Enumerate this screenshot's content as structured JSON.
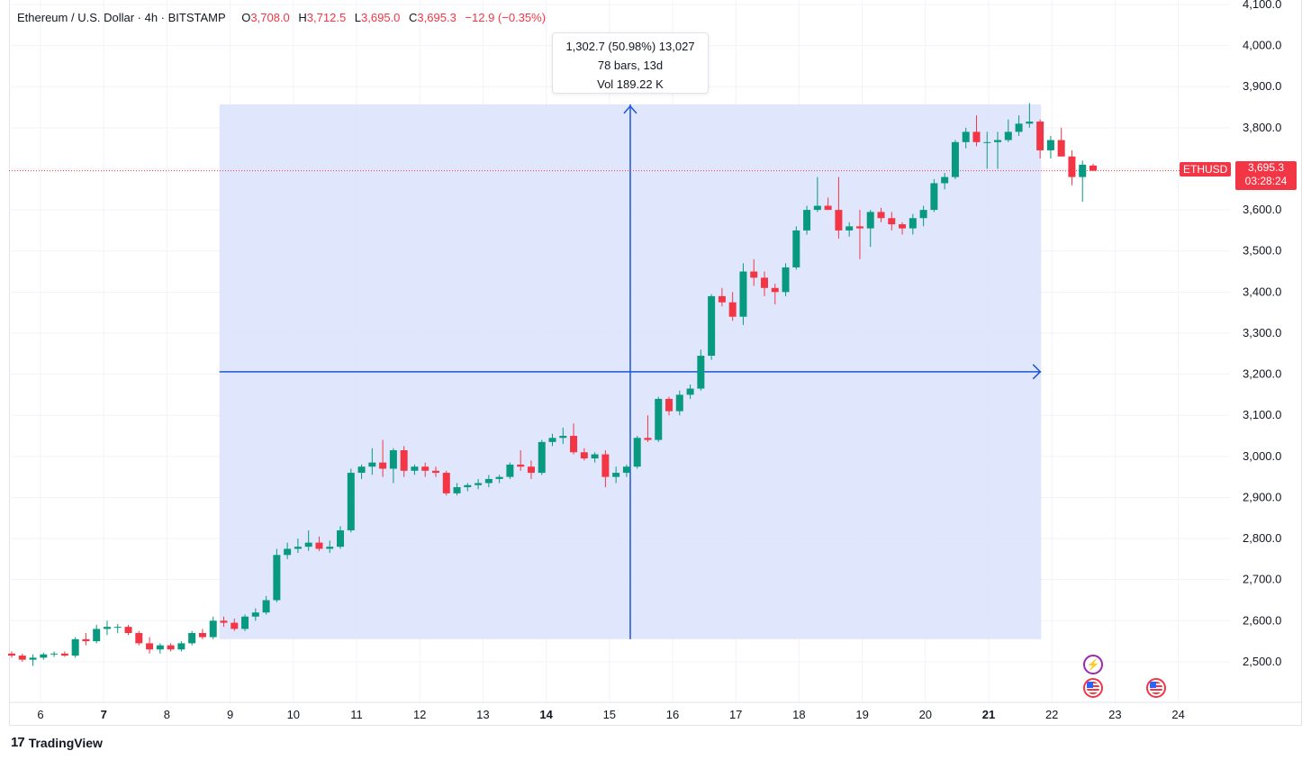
{
  "legend": {
    "symbol": "Ethereum / U.S. Dollar · 4h · BITSTAMP",
    "open_label": "O",
    "open": "3,708.0",
    "high_label": "H",
    "high": "3,712.5",
    "low_label": "L",
    "low": "3,695.0",
    "close_label": "C",
    "close": "3,695.3",
    "change": "−12.9 (−0.35%)"
  },
  "measure_tooltip": {
    "line1": "1,302.7 (50.98%) 13,027",
    "line2": "78 bars, 13d",
    "line3": "Vol 189.22 K"
  },
  "price_label": {
    "ticker": "ETHUSD",
    "price": "3,695.3",
    "countdown": "03:28:24"
  },
  "footer": {
    "logo": "17",
    "brand": "TradingView"
  },
  "events": [
    "lightning-event-icon",
    "us-flag-event-icon",
    "us-flag-event-icon"
  ],
  "colors": {
    "up": "#089981",
    "down": "#f23645",
    "measure_fill": "#dbe3fc",
    "measure_line": "#1e55d8"
  },
  "chart_data": {
    "type": "candlestick",
    "title": "Ethereum / U.S. Dollar · 4h · BITSTAMP",
    "y_ticks": [
      "2,500.0",
      "2,600.0",
      "2,700.0",
      "2,800.0",
      "2,900.0",
      "3,000.0",
      "3,100.0",
      "3,200.0",
      "3,300.0",
      "3,400.0",
      "3,500.0",
      "3,600.0",
      "3,700.0",
      "3,800.0",
      "3,900.0",
      "4,000.0",
      "4,100.0"
    ],
    "y_tick_values": [
      2500,
      2600,
      2700,
      2800,
      2900,
      3000,
      3100,
      3200,
      3300,
      3400,
      3500,
      3600,
      3700,
      3800,
      3900,
      4000,
      4100
    ],
    "ylim": [
      2440,
      4110
    ],
    "x_ticks": [
      {
        "label": "6",
        "day": 6,
        "bold": false
      },
      {
        "label": "7",
        "day": 7,
        "bold": true
      },
      {
        "label": "8",
        "day": 8,
        "bold": false
      },
      {
        "label": "9",
        "day": 9,
        "bold": false
      },
      {
        "label": "10",
        "day": 10,
        "bold": false
      },
      {
        "label": "11",
        "day": 11,
        "bold": false
      },
      {
        "label": "12",
        "day": 12,
        "bold": false
      },
      {
        "label": "13",
        "day": 13,
        "bold": false
      },
      {
        "label": "14",
        "day": 14,
        "bold": true
      },
      {
        "label": "15",
        "day": 15,
        "bold": false
      },
      {
        "label": "16",
        "day": 16,
        "bold": false
      },
      {
        "label": "17",
        "day": 17,
        "bold": false
      },
      {
        "label": "18",
        "day": 18,
        "bold": false
      },
      {
        "label": "19",
        "day": 19,
        "bold": false
      },
      {
        "label": "20",
        "day": 20,
        "bold": false
      },
      {
        "label": "21",
        "day": 21,
        "bold": true
      },
      {
        "label": "22",
        "day": 22,
        "bold": false
      },
      {
        "label": "23",
        "day": 23,
        "bold": false
      },
      {
        "label": "24",
        "day": 24,
        "bold": false
      }
    ],
    "grid": true,
    "last_price": 3695.3,
    "measure": {
      "start_day": 8.83,
      "end_day": 21.83,
      "low": 2555,
      "high": 3857,
      "change": "1,302.7 (50.98%)"
    },
    "ohlc": [
      [
        2520,
        2525,
        2510,
        2515
      ],
      [
        2515,
        2520,
        2500,
        2505
      ],
      [
        2505,
        2518,
        2490,
        2510
      ],
      [
        2510,
        2522,
        2505,
        2518
      ],
      [
        2518,
        2525,
        2512,
        2520
      ],
      [
        2520,
        2525,
        2512,
        2515
      ],
      [
        2515,
        2560,
        2510,
        2555
      ],
      [
        2555,
        2570,
        2540,
        2550
      ],
      [
        2550,
        2590,
        2545,
        2580
      ],
      [
        2580,
        2600,
        2565,
        2585
      ],
      [
        2585,
        2592,
        2570,
        2585
      ],
      [
        2585,
        2590,
        2565,
        2570
      ],
      [
        2570,
        2575,
        2540,
        2545
      ],
      [
        2545,
        2560,
        2520,
        2530
      ],
      [
        2530,
        2545,
        2520,
        2540
      ],
      [
        2540,
        2545,
        2525,
        2530
      ],
      [
        2530,
        2550,
        2525,
        2545
      ],
      [
        2545,
        2575,
        2540,
        2570
      ],
      [
        2570,
        2580,
        2555,
        2560
      ],
      [
        2560,
        2610,
        2555,
        2600
      ],
      [
        2600,
        2610,
        2585,
        2595
      ],
      [
        2595,
        2605,
        2575,
        2580
      ],
      [
        2580,
        2615,
        2575,
        2610
      ],
      [
        2610,
        2630,
        2600,
        2620
      ],
      [
        2620,
        2660,
        2615,
        2650
      ],
      [
        2650,
        2775,
        2645,
        2760
      ],
      [
        2760,
        2790,
        2750,
        2775
      ],
      [
        2775,
        2800,
        2765,
        2780
      ],
      [
        2780,
        2820,
        2770,
        2790
      ],
      [
        2790,
        2805,
        2770,
        2775
      ],
      [
        2775,
        2795,
        2765,
        2780
      ],
      [
        2780,
        2830,
        2775,
        2820
      ],
      [
        2820,
        2970,
        2815,
        2960
      ],
      [
        2960,
        2980,
        2945,
        2975
      ],
      [
        2975,
        3020,
        2955,
        2985
      ],
      [
        2985,
        3040,
        2950,
        2970
      ],
      [
        2970,
        3020,
        2935,
        3015
      ],
      [
        3015,
        3025,
        2950,
        2965
      ],
      [
        2965,
        2980,
        2955,
        2975
      ],
      [
        2975,
        2985,
        2950,
        2965
      ],
      [
        2965,
        2975,
        2950,
        2960
      ],
      [
        2960,
        2965,
        2905,
        2910
      ],
      [
        2910,
        2935,
        2905,
        2925
      ],
      [
        2925,
        2935,
        2915,
        2930
      ],
      [
        2930,
        2945,
        2920,
        2935
      ],
      [
        2935,
        2955,
        2925,
        2945
      ],
      [
        2945,
        2955,
        2935,
        2950
      ],
      [
        2950,
        2985,
        2945,
        2980
      ],
      [
        2980,
        3015,
        2965,
        2975
      ],
      [
        2975,
        2990,
        2945,
        2960
      ],
      [
        2960,
        3040,
        2955,
        3035
      ],
      [
        3035,
        3055,
        3025,
        3045
      ],
      [
        3045,
        3070,
        3030,
        3050
      ],
      [
        3050,
        3080,
        3005,
        3010
      ],
      [
        3010,
        3020,
        2990,
        2995
      ],
      [
        2995,
        3010,
        2985,
        3005
      ],
      [
        3005,
        3015,
        2925,
        2950
      ],
      [
        2950,
        2975,
        2935,
        2960
      ],
      [
        2960,
        2980,
        2950,
        2975
      ],
      [
        2975,
        3050,
        2970,
        3045
      ],
      [
        3045,
        3100,
        3035,
        3040
      ],
      [
        3040,
        3145,
        3035,
        3140
      ],
      [
        3140,
        3145,
        3100,
        3110
      ],
      [
        3110,
        3160,
        3100,
        3150
      ],
      [
        3150,
        3175,
        3140,
        3165
      ],
      [
        3165,
        3260,
        3160,
        3245
      ],
      [
        3245,
        3395,
        3235,
        3390
      ],
      [
        3390,
        3410,
        3365,
        3375
      ],
      [
        3375,
        3400,
        3330,
        3340
      ],
      [
        3340,
        3470,
        3320,
        3450
      ],
      [
        3450,
        3480,
        3415,
        3435
      ],
      [
        3435,
        3450,
        3390,
        3410
      ],
      [
        3410,
        3420,
        3370,
        3400
      ],
      [
        3400,
        3470,
        3390,
        3460
      ],
      [
        3460,
        3560,
        3455,
        3550
      ],
      [
        3550,
        3610,
        3540,
        3600
      ],
      [
        3600,
        3680,
        3595,
        3610
      ],
      [
        3610,
        3630,
        3600,
        3600
      ],
      [
        3600,
        3680,
        3530,
        3550
      ],
      [
        3550,
        3570,
        3535,
        3560
      ],
      [
        3560,
        3600,
        3480,
        3555
      ],
      [
        3555,
        3600,
        3510,
        3595
      ],
      [
        3595,
        3605,
        3570,
        3580
      ],
      [
        3580,
        3595,
        3550,
        3565
      ],
      [
        3565,
        3570,
        3540,
        3555
      ],
      [
        3555,
        3590,
        3540,
        3580
      ],
      [
        3580,
        3610,
        3560,
        3600
      ],
      [
        3600,
        3675,
        3595,
        3665
      ],
      [
        3665,
        3690,
        3650,
        3680
      ],
      [
        3680,
        3770,
        3675,
        3765
      ],
      [
        3765,
        3800,
        3750,
        3790
      ],
      [
        3790,
        3830,
        3755,
        3765
      ],
      [
        3765,
        3790,
        3700,
        3765
      ],
      [
        3765,
        3790,
        3700,
        3770
      ],
      [
        3770,
        3820,
        3765,
        3790
      ],
      [
        3790,
        3830,
        3780,
        3810
      ],
      [
        3810,
        3860,
        3800,
        3815
      ],
      [
        3815,
        3820,
        3725,
        3745
      ],
      [
        3745,
        3780,
        3725,
        3770
      ],
      [
        3770,
        3800,
        3735,
        3730
      ],
      [
        3730,
        3745,
        3660,
        3680
      ],
      [
        3680,
        3720,
        3620,
        3710
      ],
      [
        3708,
        3712.5,
        3695,
        3695.3
      ]
    ]
  }
}
